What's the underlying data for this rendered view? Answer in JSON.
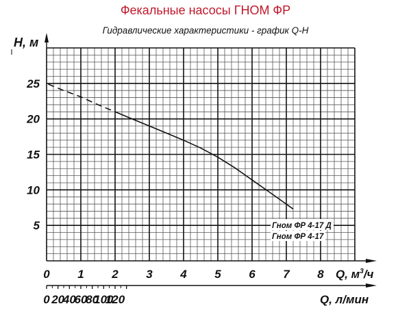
{
  "header": {
    "title": "Фекальные насосы ГНОМ ФР",
    "subtitle": "Гидравлические характеристики - график Q-H"
  },
  "chart_data": {
    "type": "line",
    "title": "Фекальные насосы ГНОМ ФР",
    "subtitle": "Гидравлические характеристики - график Q-H",
    "ylabel": "H, м",
    "xlabel": "Q, м³/ч",
    "xlabel_secondary": "Q, л/мин",
    "ylim": [
      0,
      30
    ],
    "xlim": [
      0,
      9
    ],
    "y_ticks": [
      5,
      10,
      15,
      20,
      25
    ],
    "x_ticks": [
      0,
      1,
      2,
      3,
      4,
      5,
      6,
      7,
      8
    ],
    "x_secondary_ticks": [
      0,
      20,
      40,
      60,
      80,
      100,
      120
    ],
    "grid": true,
    "grid_minor_per_major": 5,
    "legend": [
      "Гном ФР 4-17 Д",
      "Гном ФР 4-17"
    ],
    "legend_position": "lower right inside plot",
    "series": [
      {
        "name": "Гном ФР 4-17 (Д)",
        "segment_dashed": {
          "x": [
            0.05,
            0.5,
            1.0,
            1.5,
            2.0
          ],
          "y": [
            24.9,
            24.0,
            23.1,
            22.0,
            21.0
          ]
        },
        "segment_solid": {
          "x": [
            2.0,
            2.5,
            3.0,
            3.5,
            4.0,
            4.5,
            5.0,
            5.5,
            6.0,
            6.5,
            7.0,
            7.2
          ],
          "y": [
            21.0,
            20.0,
            19.0,
            18.0,
            17.0,
            15.9,
            14.6,
            13.1,
            11.4,
            9.7,
            8.0,
            7.3
          ]
        }
      }
    ]
  }
}
